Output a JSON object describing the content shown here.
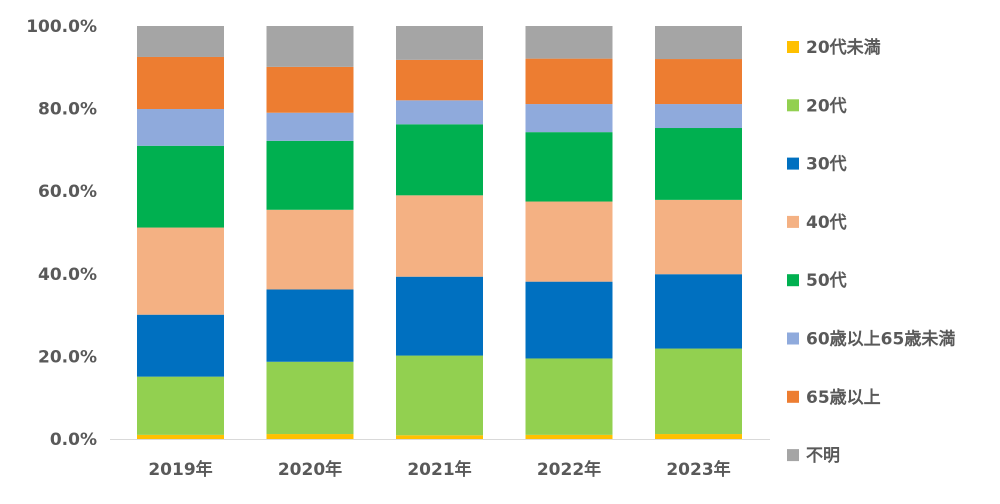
{
  "chart_data": {
    "type": "bar",
    "stacked": true,
    "categories": [
      "2019年",
      "2020年",
      "2021年",
      "2022年",
      "2023年"
    ],
    "ylim": [
      0,
      100
    ],
    "y_tick_labels": [
      "0.0%",
      "20.0%",
      "40.0%",
      "60.0%",
      "80.0%",
      "100.0%"
    ],
    "grid": false,
    "legend_position": "right",
    "series": [
      {
        "name": "20代未満",
        "color": "#FFC000",
        "values": [
          1.0,
          1.2,
          0.9,
          1.0,
          1.2
        ]
      },
      {
        "name": "20代",
        "color": "#92D050",
        "values": [
          14.1,
          17.5,
          19.3,
          18.5,
          20.7
        ]
      },
      {
        "name": "30代",
        "color": "#0070C0",
        "values": [
          15.0,
          17.5,
          19.1,
          18.6,
          18.0
        ]
      },
      {
        "name": "40代",
        "color": "#F4B183",
        "values": [
          21.1,
          19.3,
          19.7,
          19.4,
          18.0
        ]
      },
      {
        "name": "50代",
        "color": "#00B050",
        "values": [
          19.8,
          16.7,
          17.2,
          16.8,
          17.4
        ]
      },
      {
        "name": "60歳以上65歳未満",
        "color": "#8FAADC",
        "values": [
          8.9,
          6.8,
          5.8,
          6.8,
          5.8
        ]
      },
      {
        "name": "65歳以上",
        "color": "#ED7D31",
        "values": [
          12.6,
          11.1,
          9.8,
          11.0,
          10.9
        ]
      },
      {
        "name": "不明",
        "color": "#A5A5A5",
        "values": [
          7.5,
          9.9,
          8.2,
          7.9,
          8.0
        ]
      }
    ]
  }
}
